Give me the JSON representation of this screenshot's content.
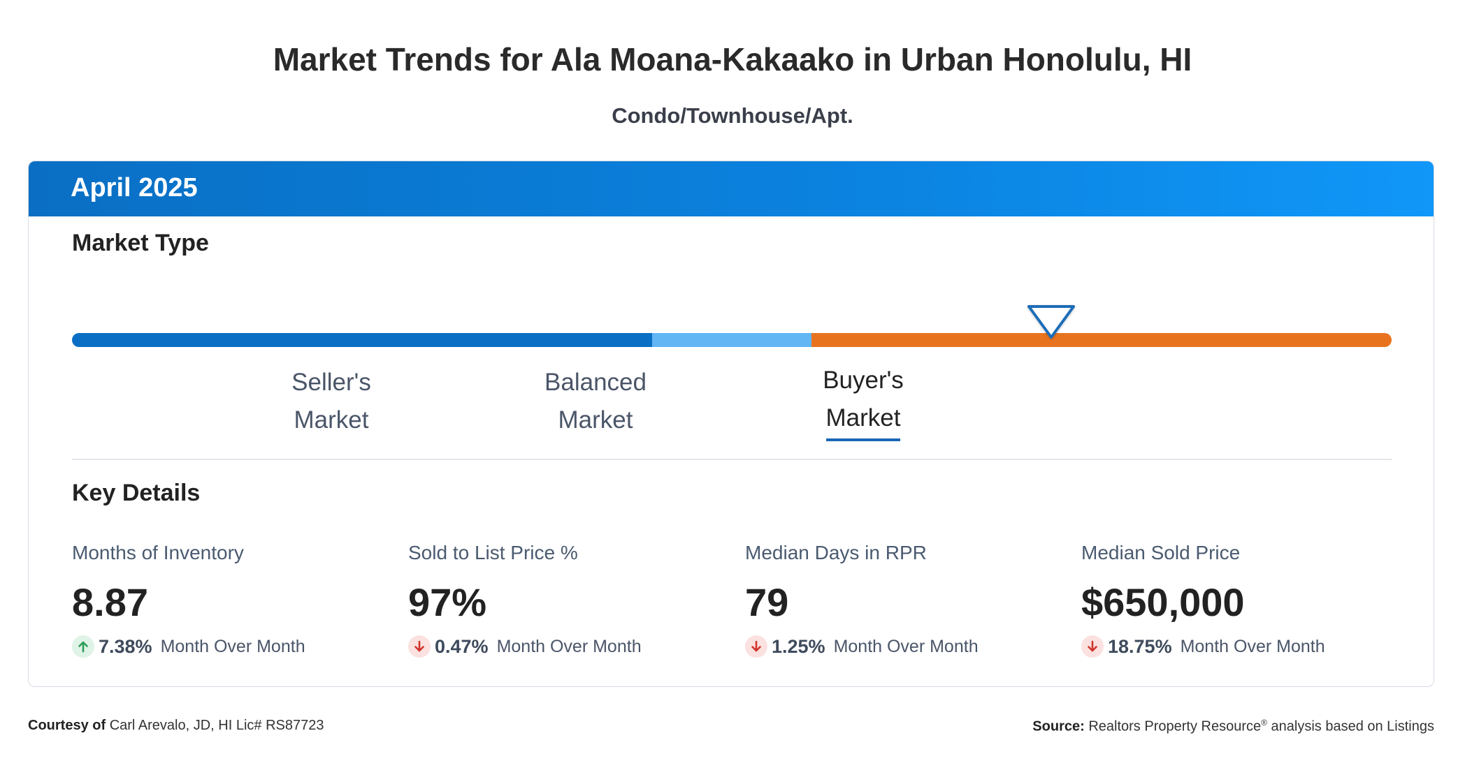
{
  "page": {
    "title": "Market Trends for Ala Moana-Kakaako in Urban Honolulu, HI",
    "subtitle": "Condo/Townhouse/Apt."
  },
  "card": {
    "period": "April 2025",
    "market_type": {
      "heading": "Market Type",
      "segments": [
        {
          "line1": "Seller's",
          "line2": "Market",
          "color": "#0a6fc4"
        },
        {
          "line1": "Balanced",
          "line2": "Market",
          "color": "#62b6f4"
        },
        {
          "line1": "Buyer's",
          "line2": "Market",
          "color": "#e8731f"
        }
      ],
      "selected": "Buyer's Market",
      "pointer_icon": "triangle-down-marker-icon"
    },
    "key_details": {
      "heading": "Key Details",
      "stats": [
        {
          "label": "Months of Inventory",
          "value": "8.87",
          "direction": "up",
          "change": "7.38%",
          "change_label": "Month Over Month"
        },
        {
          "label": "Sold to List Price %",
          "value": "97%",
          "direction": "down",
          "change": "0.47%",
          "change_label": "Month Over Month"
        },
        {
          "label": "Median Days in RPR",
          "value": "79",
          "direction": "down",
          "change": "1.25%",
          "change_label": "Month Over Month"
        },
        {
          "label": "Median Sold Price",
          "value": "$650,000",
          "direction": "down",
          "change": "18.75%",
          "change_label": "Month Over Month"
        }
      ]
    }
  },
  "footer": {
    "courtesy_label": "Courtesy of",
    "courtesy_text": "Carl Arevalo, JD, HI Lic# RS87723",
    "source_label": "Source:",
    "source_text_a": "Realtors Property Resource",
    "source_reg": "®",
    "source_text_b": " analysis based on Listings"
  },
  "colors": {
    "header_blue": "#0b83e0",
    "seller": "#0a6fc4",
    "balanced": "#62b6f4",
    "buyer": "#e8731f",
    "up_green": "#2e9e5b",
    "down_red": "#d0342c"
  }
}
